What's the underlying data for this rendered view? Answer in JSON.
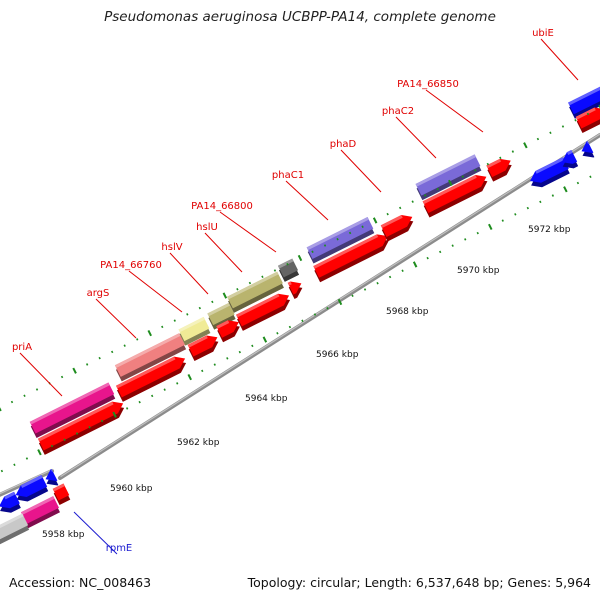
{
  "title": "Pseudomonas aeruginosa UCBPP-PA14, complete genome",
  "footer": {
    "accession": "Accession: NC_008463",
    "summary": "Topology: circular; Length: 6,537,648 bp; Genes: 5,964"
  },
  "colors": {
    "backbone": "#8c8c8c",
    "tick": "#1e8c1e",
    "tick_label": "#111111",
    "gene_label": "#e00000",
    "gene_label_alt": "#1c1cd0",
    "cds": "#ff0000",
    "blue_gene": "#0a0aff",
    "magenta": "#e8158c",
    "salmon": "#f08080",
    "pale_yellow": "#f0eb96",
    "olive": "#b9b46e",
    "dark_grey": "#646464",
    "slate_blue": "#7a6ad8",
    "light_grey": "#c8c8c8"
  },
  "kbp_labels": [
    "5958 kbp",
    "5960 kbp",
    "5962 kbp",
    "5964 kbp",
    "5966 kbp",
    "5968 kbp",
    "5970 kbp",
    "5972 kbp"
  ],
  "gene_labels": [
    {
      "name": "priA",
      "color": "red"
    },
    {
      "name": "argS",
      "color": "red"
    },
    {
      "name": "PA14_66760",
      "color": "red"
    },
    {
      "name": "hslV",
      "color": "red"
    },
    {
      "name": "hslU",
      "color": "red"
    },
    {
      "name": "PA14_66800",
      "color": "red"
    },
    {
      "name": "phaC1",
      "color": "red"
    },
    {
      "name": "phaD",
      "color": "red"
    },
    {
      "name": "phaC2",
      "color": "red"
    },
    {
      "name": "PA14_66850",
      "color": "red"
    },
    {
      "name": "ubiE",
      "color": "red"
    },
    {
      "name": "rpmE",
      "color": "blue"
    }
  ]
}
